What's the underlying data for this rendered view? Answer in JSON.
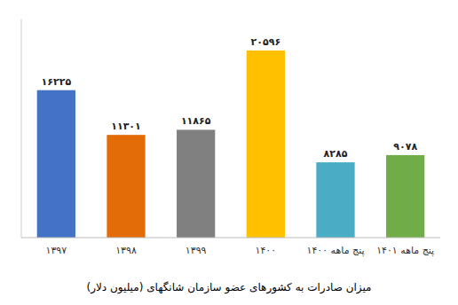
{
  "chart_data": {
    "type": "bar",
    "title": "میزان صادرات به کشورهای عضو سازمان شانگهای (میلیون دلار)",
    "categories": [
      "۱۳۹۷",
      "۱۳۹۸",
      "۱۳۹۹",
      "۱۴۰۰",
      "پنج ماهه ۱۴۰۰",
      "پنج ماهه ۱۴۰۱"
    ],
    "values": [
      16225,
      11301,
      11865,
      20596,
      8285,
      9078
    ],
    "value_labels": [
      "۱۶۲۲۵",
      "۱۱۳۰۱",
      "۱۱۸۶۵",
      "۲۰۵۹۶",
      "۸۲۸۵",
      "۹۰۷۸"
    ],
    "colors": [
      "#4472c4",
      "#e36c09",
      "#808080",
      "#ffc000",
      "#4bacc6",
      "#70ad47"
    ],
    "ylim": [
      0,
      24000
    ],
    "data_labels": true,
    "tick_labels": "x",
    "grid": false
  }
}
